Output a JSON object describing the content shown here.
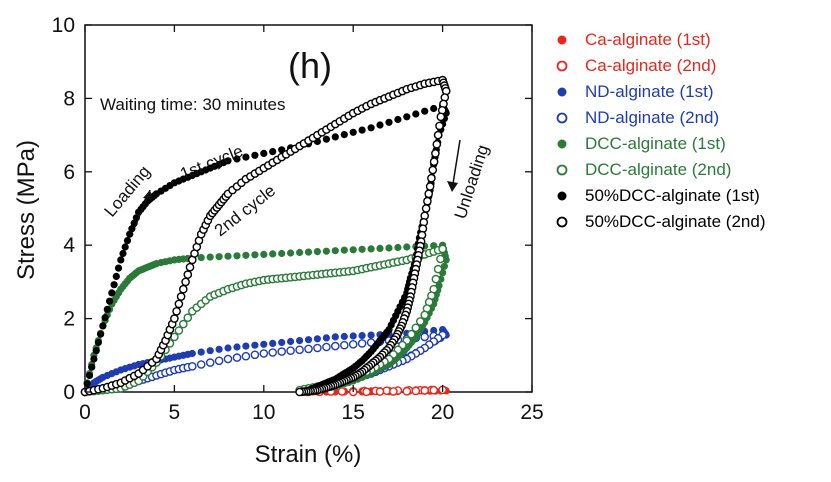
{
  "chart_data": {
    "type": "scatter",
    "title": "(h)",
    "subtitle": "Waiting time: 30 minutes",
    "xlabel": "Strain (%)",
    "ylabel": "Stress (MPa)",
    "xlim": [
      0,
      25
    ],
    "ylim": [
      0,
      10
    ],
    "xticks": [
      "0",
      "5",
      "10",
      "15",
      "20",
      "25"
    ],
    "yticks": [
      "0",
      "2",
      "4",
      "6",
      "8",
      "10"
    ],
    "grid": false,
    "legend_position": "right",
    "annotations": [
      "Loading",
      "1st cycle",
      "2nd cycle",
      "Unloading"
    ],
    "series": [
      {
        "name": "Ca-alginate (1st)",
        "color": "#e8261c",
        "filled": true,
        "x": [
          12,
          14,
          16,
          18,
          20,
          20.2,
          19,
          17,
          15,
          13,
          12
        ],
        "y": [
          0,
          0.02,
          0.03,
          0.05,
          0.08,
          0.03,
          0.02,
          0.01,
          0,
          0,
          0
        ]
      },
      {
        "name": "Ca-alginate (2nd)",
        "color": "#e8261c",
        "filled": false,
        "x": [
          12.5,
          15,
          17.5,
          20,
          18,
          15
        ],
        "y": [
          0,
          0.02,
          0.04,
          0.06,
          0.02,
          0
        ]
      },
      {
        "name": "ND-alginate (1st)",
        "color": "#1f3cb0",
        "filled": true,
        "x": [
          0,
          0.5,
          1,
          2,
          3,
          4,
          5,
          6,
          8,
          10,
          12,
          14,
          16,
          18,
          20,
          20.2,
          19,
          18,
          17,
          16,
          15,
          14,
          13,
          12.5
        ],
        "y": [
          0,
          0.25,
          0.4,
          0.6,
          0.75,
          0.85,
          0.95,
          1.05,
          1.2,
          1.3,
          1.4,
          1.5,
          1.55,
          1.6,
          1.7,
          1.55,
          1.2,
          0.95,
          0.75,
          0.55,
          0.4,
          0.25,
          0.1,
          0
        ]
      },
      {
        "name": "ND-alginate (2nd)",
        "color": "#1f3cb0",
        "filled": false,
        "x": [
          0,
          1,
          2,
          3,
          4,
          5,
          6,
          8,
          10,
          12,
          14,
          16,
          18,
          20,
          19,
          18,
          17,
          16,
          15,
          14,
          13
        ],
        "y": [
          0,
          0.1,
          0.2,
          0.3,
          0.45,
          0.6,
          0.7,
          0.9,
          1.05,
          1.15,
          1.25,
          1.35,
          1.45,
          1.55,
          1.2,
          0.9,
          0.7,
          0.5,
          0.35,
          0.2,
          0.05
        ]
      },
      {
        "name": "DCC-alginate (1st)",
        "color": "#2b7a3a",
        "filled": true,
        "x": [
          0,
          0.5,
          1,
          1.5,
          2,
          2.5,
          3,
          3.5,
          4,
          5,
          6,
          8,
          10,
          12,
          14,
          16,
          18,
          20,
          20.2,
          19.8,
          19.5,
          19,
          18.5,
          18,
          17.5,
          17,
          16,
          15,
          14,
          13,
          12.5
        ],
        "y": [
          0,
          1.0,
          1.8,
          2.4,
          2.8,
          3.1,
          3.3,
          3.4,
          3.5,
          3.6,
          3.65,
          3.7,
          3.75,
          3.8,
          3.85,
          3.9,
          3.95,
          4.0,
          3.6,
          2.9,
          2.4,
          1.9,
          1.5,
          1.2,
          0.95,
          0.75,
          0.5,
          0.3,
          0.15,
          0.05,
          0
        ]
      },
      {
        "name": "DCC-alginate (2nd)",
        "color": "#2b7a3a",
        "filled": false,
        "x": [
          0,
          1,
          2,
          3,
          4,
          5,
          6,
          7,
          8,
          9,
          10,
          11,
          12,
          13,
          14,
          15,
          16,
          17,
          18,
          19,
          20,
          19.5,
          19,
          18,
          17,
          16,
          15,
          14,
          13,
          12
        ],
        "y": [
          0,
          0.05,
          0.1,
          0.3,
          0.8,
          1.5,
          2.2,
          2.6,
          2.8,
          2.95,
          3.05,
          3.1,
          3.15,
          3.2,
          3.25,
          3.3,
          3.4,
          3.5,
          3.6,
          3.75,
          3.9,
          2.8,
          2.1,
          1.4,
          0.9,
          0.6,
          0.4,
          0.25,
          0.15,
          0.05
        ]
      },
      {
        "name": "50%DCC-alginate (1st)",
        "color": "#000000",
        "filled": true,
        "x": [
          0,
          0.5,
          1,
          1.5,
          2,
          2.5,
          3,
          3.5,
          4,
          5,
          6,
          7,
          8,
          10,
          12,
          14,
          16,
          18,
          20,
          20.2,
          19.8,
          19.5,
          19.3,
          19.0,
          18.7,
          18.5,
          18.2,
          18,
          17.5,
          17,
          16.5,
          16,
          15.5,
          15,
          14.5,
          14,
          13.5,
          13,
          12.5,
          12
        ],
        "y": [
          0,
          0.9,
          1.8,
          2.7,
          3.6,
          4.3,
          4.9,
          5.2,
          5.4,
          5.7,
          5.9,
          6.1,
          6.3,
          6.5,
          6.7,
          6.95,
          7.2,
          7.5,
          7.8,
          7.6,
          7.0,
          6.2,
          5.5,
          4.8,
          4.2,
          3.6,
          3.1,
          2.7,
          2.2,
          1.7,
          1.4,
          1.1,
          0.85,
          0.65,
          0.5,
          0.35,
          0.25,
          0.15,
          0.05,
          0
        ]
      },
      {
        "name": "50%DCC-alginate (2nd)",
        "color": "#000000",
        "filled": false,
        "x": [
          0,
          1,
          2,
          3,
          4,
          4.5,
          5,
          5.5,
          6,
          6.5,
          7,
          7.5,
          8,
          9,
          10,
          11,
          12,
          13,
          14,
          15,
          16,
          17,
          18,
          19,
          20,
          20.2,
          19.9,
          19.6,
          19.3,
          19.0,
          18.8,
          18.6,
          18.4,
          18.2,
          18,
          17.7,
          17.4,
          17,
          16.5,
          16,
          15.5,
          15,
          14.5,
          14,
          13.5,
          13,
          12.5,
          12
        ],
        "y": [
          0,
          0.1,
          0.25,
          0.5,
          0.9,
          1.4,
          2.0,
          2.8,
          3.6,
          4.3,
          4.8,
          5.1,
          5.4,
          5.8,
          6.1,
          6.4,
          6.7,
          7.0,
          7.3,
          7.6,
          7.85,
          8.05,
          8.25,
          8.4,
          8.5,
          8.2,
          7.5,
          6.5,
          5.6,
          4.8,
          4.1,
          3.6,
          3.1,
          2.6,
          2.2,
          1.8,
          1.5,
          1.2,
          0.95,
          0.75,
          0.55,
          0.4,
          0.3,
          0.2,
          0.12,
          0.05,
          0.02,
          0
        ]
      }
    ]
  }
}
